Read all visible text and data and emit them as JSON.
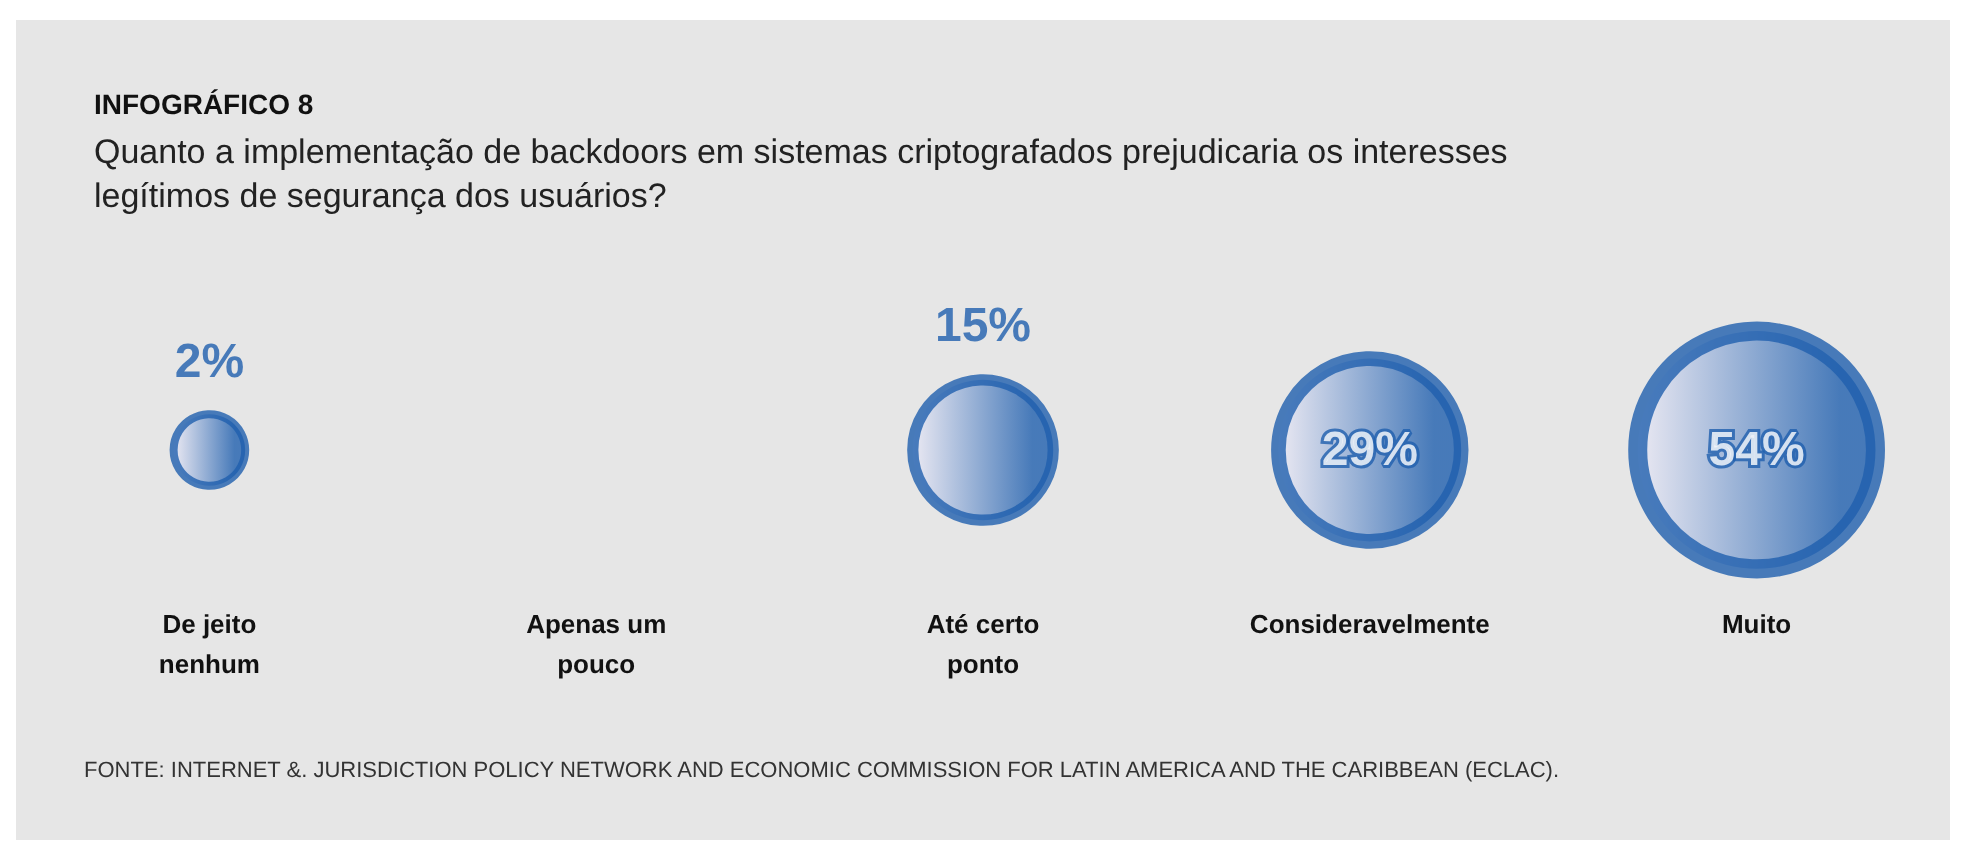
{
  "chart_data": {
    "type": "other",
    "title": "INFOGRÁFICO 8",
    "subtitle": "Quanto a implementação de backdoors em sistemas criptografados prejudicaria os interesses legítimos de segurança dos usuários?",
    "categories": [
      "De jeito nenhum",
      "Apenas um pouco",
      "Até certo ponto",
      "Consideravelmente",
      "Muito"
    ],
    "values": [
      2,
      null,
      15,
      29,
      54
    ],
    "value_labels": [
      "2%",
      null,
      "15%",
      "29%",
      "54%"
    ],
    "color": "#1f5fae",
    "annotations": [
      "FONTE: INTERNET &. JURISDICTION POLICY NETWORK AND ECONOMIC COMMISSION FOR LATIN AMERICA AND THE CARIBBEAN (ECLAC)."
    ]
  }
}
